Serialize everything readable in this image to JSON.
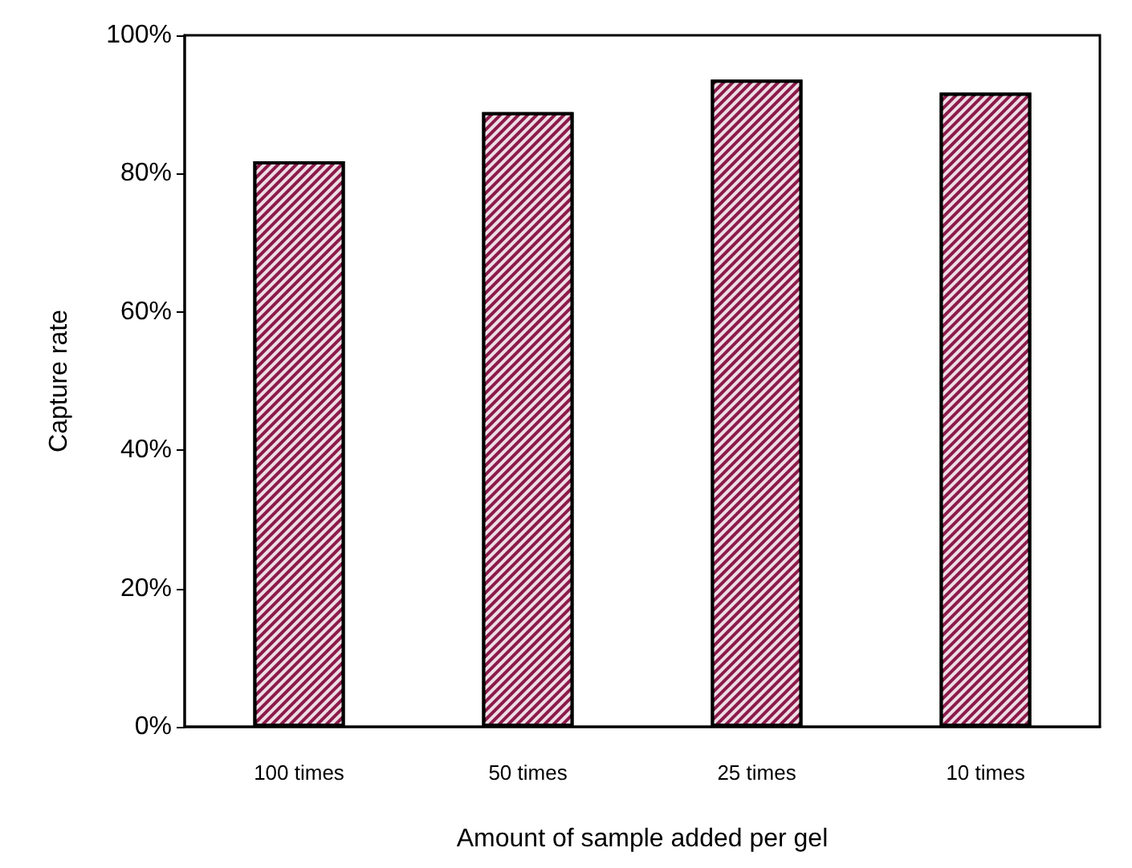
{
  "chart_data": {
    "type": "bar",
    "xlabel": "Amount of sample added per gel",
    "ylabel": "Capture rate",
    "categories": [
      "100 times",
      "50 times",
      "25 times",
      "10 times"
    ],
    "values": [
      81.8,
      88.9,
      93.6,
      91.7
    ],
    "color": "#8b1a4a",
    "ylim": [
      0,
      100
    ],
    "yticks": [
      {
        "value": 0,
        "label": "0%"
      },
      {
        "value": 20,
        "label": "20%"
      },
      {
        "value": 40,
        "label": "40%"
      },
      {
        "value": 60,
        "label": "60%"
      },
      {
        "value": 80,
        "label": "80%"
      },
      {
        "value": 100,
        "label": "100%"
      }
    ],
    "grid": false
  }
}
